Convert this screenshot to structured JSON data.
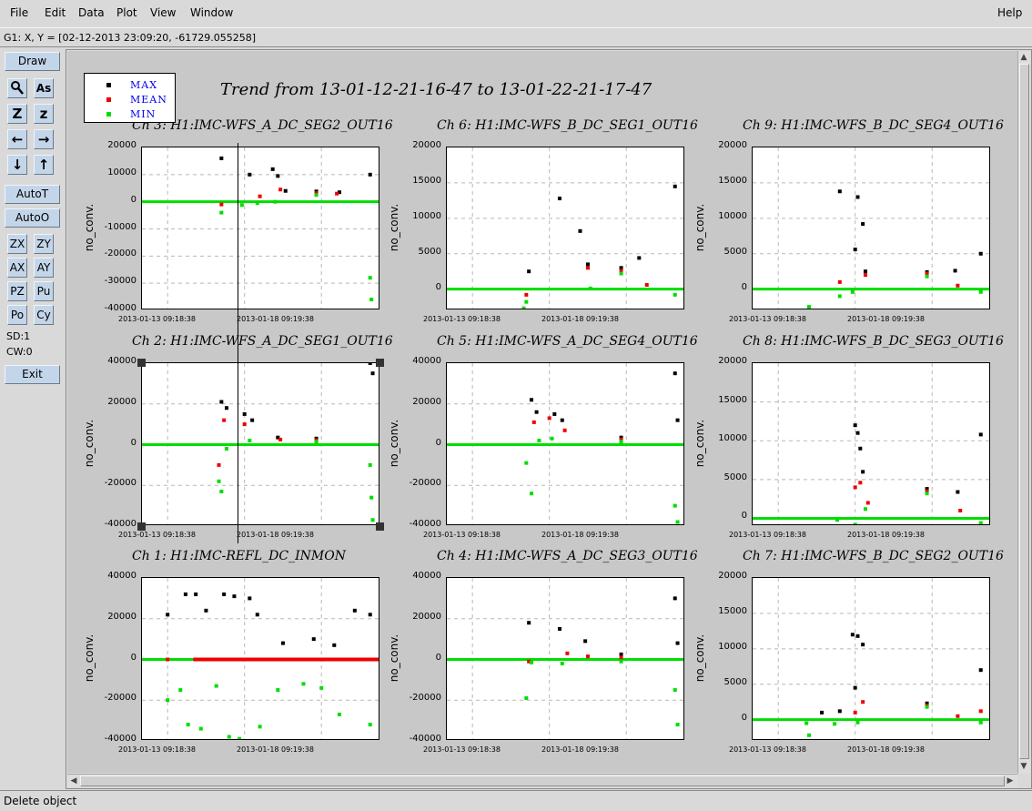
{
  "menu": {
    "file": "File",
    "edit": "Edit",
    "data": "Data",
    "plot": "Plot",
    "view": "View",
    "window": "Window",
    "help": "Help"
  },
  "coord_readout": "G1: X, Y = [02-12-2013 23:09:20, -61729.055258]",
  "toolbar": {
    "draw": "Draw",
    "magnify_icon": "magnify-icon",
    "text_icon_label": "As",
    "zoom_in_label": "Z",
    "zoom_out_label": "z",
    "auto_t": "AutoT",
    "auto_o": "AutoO",
    "zx": "ZX",
    "zy": "ZY",
    "ax": "AX",
    "ay": "AY",
    "pz": "PZ",
    "pu": "Pu",
    "po": "Po",
    "cy": "Cy",
    "sd": "SD:1",
    "cw": "CW:0",
    "exit": "Exit",
    "button_color": "#c3d5e9"
  },
  "status": "Delete object",
  "trend_title": "Trend from 13-01-12-21-16-47 to 13-01-22-21-17-47",
  "legend": [
    {
      "label": "MAX",
      "color": "#000000"
    },
    {
      "label": "MEAN",
      "color": "#ee0000"
    },
    {
      "label": "MIN",
      "color": "#00dd00"
    }
  ],
  "chart_data": [
    {
      "type": "scatter",
      "title": "Ch 3: H1:IMC-WFS_A_DC_SEG2_OUT16",
      "ylabel": "no_conv.",
      "ylim": [
        -40000,
        20000
      ],
      "yticks": [
        "20000",
        "10000",
        "0",
        "-10000",
        "-20000",
        "-30000",
        "-40000"
      ],
      "xticks": [
        "2013-01-13 09:18:38",
        "2013-01-18 09:19:38"
      ],
      "grid": true,
      "series": [
        {
          "name": "MAX",
          "points": [
            [
              3.1,
              16000
            ],
            [
              4.2,
              10000
            ],
            [
              5.1,
              12000
            ],
            [
              5.3,
              9500
            ],
            [
              5.6,
              4000
            ],
            [
              6.8,
              3800
            ],
            [
              7.7,
              3500
            ],
            [
              8.9,
              10000
            ]
          ]
        },
        {
          "name": "MEAN",
          "points": [
            [
              3.1,
              -1000
            ],
            [
              4.6,
              2000
            ],
            [
              5.4,
              4500
            ],
            [
              6.8,
              3200
            ],
            [
              7.6,
              3000
            ]
          ]
        },
        {
          "name": "MIN",
          "points": [
            [
              3.1,
              -4000
            ],
            [
              3.9,
              -1200
            ],
            [
              4.5,
              -500
            ],
            [
              5.2,
              0
            ],
            [
              6.8,
              2500
            ],
            [
              8.9,
              -28000
            ],
            [
              8.95,
              -36000
            ]
          ]
        }
      ]
    },
    {
      "type": "scatter",
      "title": "Ch 6: H1:IMC-WFS_B_DC_SEG1_OUT16",
      "ylabel": "no_conv.",
      "ylim": [
        -3000,
        20000
      ],
      "yticks": [
        "20000",
        "15000",
        "10000",
        "5000",
        "0"
      ],
      "xticks": [
        "2013-01-13 09:18:38",
        "2013-01-18 09:19:38"
      ],
      "grid": true,
      "series": [
        {
          "name": "MAX",
          "points": [
            [
              3.2,
              2500
            ],
            [
              4.4,
              12800
            ],
            [
              5.2,
              8200
            ],
            [
              5.5,
              3500
            ],
            [
              6.8,
              3000
            ],
            [
              7.5,
              4400
            ],
            [
              8.9,
              14500
            ]
          ]
        },
        {
          "name": "MEAN",
          "points": [
            [
              3.1,
              -800
            ],
            [
              5.5,
              3000
            ],
            [
              6.8,
              2600
            ],
            [
              7.8,
              600
            ]
          ]
        },
        {
          "name": "MIN",
          "points": [
            [
              3.0,
              -2700
            ],
            [
              3.1,
              -1800
            ],
            [
              5.6,
              100
            ],
            [
              6.8,
              2200
            ],
            [
              8.9,
              -800
            ]
          ]
        }
      ]
    },
    {
      "type": "scatter",
      "title": "Ch 9: H1:IMC-WFS_B_DC_SEG4_OUT16",
      "ylabel": "no_conv.",
      "ylim": [
        -3000,
        20000
      ],
      "yticks": [
        "20000",
        "15000",
        "10000",
        "5000",
        "0"
      ],
      "xticks": [
        "2013-01-13 09:18:38",
        "2013-01-18 09:19:38"
      ],
      "grid": true,
      "series": [
        {
          "name": "MAX",
          "points": [
            [
              3.4,
              13800
            ],
            [
              4.1,
              13000
            ],
            [
              4.0,
              5600
            ],
            [
              4.3,
              9200
            ],
            [
              4.4,
              2500
            ],
            [
              6.8,
              2400
            ],
            [
              7.9,
              2600
            ],
            [
              8.9,
              5000
            ]
          ]
        },
        {
          "name": "MEAN",
          "points": [
            [
              3.4,
              1000
            ],
            [
              4.4,
              2000
            ],
            [
              6.8,
              2200
            ],
            [
              8.0,
              500
            ]
          ]
        },
        {
          "name": "MIN",
          "points": [
            [
              2.2,
              -2500
            ],
            [
              3.4,
              -1000
            ],
            [
              3.9,
              -400
            ],
            [
              6.8,
              1800
            ],
            [
              8.9,
              -400
            ]
          ]
        }
      ]
    },
    {
      "type": "scatter",
      "title": "Ch 2: H1:IMC-WFS_A_DC_SEG1_OUT16",
      "ylabel": "no_conv.",
      "ylim": [
        -40000,
        40000
      ],
      "yticks": [
        "40000",
        "20000",
        "0",
        "-20000",
        "-40000"
      ],
      "xticks": [
        "2013-01-13 09:18:38",
        "2013-01-18 09:19:38"
      ],
      "grid": true,
      "series": [
        {
          "name": "MAX",
          "points": [
            [
              3.1,
              21000
            ],
            [
              3.3,
              18000
            ],
            [
              4.0,
              15000
            ],
            [
              4.3,
              12000
            ],
            [
              5.3,
              3500
            ],
            [
              6.8,
              3000
            ],
            [
              8.9,
              40000
            ],
            [
              9.0,
              35000
            ]
          ]
        },
        {
          "name": "MEAN",
          "points": [
            [
              3.0,
              -10000
            ],
            [
              3.2,
              12000
            ],
            [
              4.0,
              10000
            ],
            [
              5.4,
              2500
            ],
            [
              6.8,
              2200
            ]
          ]
        },
        {
          "name": "MIN",
          "points": [
            [
              3.0,
              -18000
            ],
            [
              3.1,
              -23000
            ],
            [
              3.3,
              -2000
            ],
            [
              4.2,
              2000
            ],
            [
              6.8,
              1500
            ],
            [
              8.9,
              -10000
            ],
            [
              8.95,
              -26000
            ],
            [
              9.0,
              -37000
            ]
          ]
        }
      ]
    },
    {
      "type": "scatter",
      "title": "Ch 5: H1:IMC-WFS_A_DC_SEG4_OUT16",
      "ylabel": "no_conv.",
      "ylim": [
        -40000,
        40000
      ],
      "yticks": [
        "40000",
        "20000",
        "0",
        "-20000",
        "-40000"
      ],
      "xticks": [
        "2013-01-13 09:18:38",
        "2013-01-18 09:19:38"
      ],
      "grid": true,
      "series": [
        {
          "name": "MAX",
          "points": [
            [
              3.3,
              22000
            ],
            [
              3.5,
              16000
            ],
            [
              4.2,
              15000
            ],
            [
              4.5,
              12000
            ],
            [
              6.8,
              3500
            ],
            [
              8.9,
              35000
            ],
            [
              9.0,
              12000
            ]
          ]
        },
        {
          "name": "MEAN",
          "points": [
            [
              3.4,
              11000
            ],
            [
              4.0,
              13000
            ],
            [
              4.6,
              7000
            ],
            [
              6.8,
              2500
            ]
          ]
        },
        {
          "name": "MIN",
          "points": [
            [
              3.1,
              -9000
            ],
            [
              3.3,
              -24000
            ],
            [
              3.6,
              2000
            ],
            [
              4.1,
              3000
            ],
            [
              6.8,
              1500
            ],
            [
              8.9,
              -30000
            ],
            [
              9.0,
              -38000
            ]
          ]
        }
      ]
    },
    {
      "type": "scatter",
      "title": "Ch 8: H1:IMC-WFS_B_DC_SEG3_OUT16",
      "ylabel": "no_conv.",
      "ylim": [
        -1000,
        20000
      ],
      "yticks": [
        "20000",
        "15000",
        "10000",
        "5000",
        "0"
      ],
      "xticks": [
        "2013-01-13 09:18:38",
        "2013-01-18 09:19:38"
      ],
      "grid": true,
      "series": [
        {
          "name": "MAX",
          "points": [
            [
              4.0,
              12000
            ],
            [
              4.1,
              11000
            ],
            [
              4.2,
              9000
            ],
            [
              4.3,
              6000
            ],
            [
              6.8,
              3800
            ],
            [
              8.0,
              3400
            ],
            [
              8.9,
              10800
            ]
          ]
        },
        {
          "name": "MEAN",
          "points": [
            [
              4.0,
              4000
            ],
            [
              4.2,
              4600
            ],
            [
              4.5,
              2000
            ],
            [
              6.8,
              3500
            ],
            [
              8.1,
              1000
            ]
          ]
        },
        {
          "name": "MIN",
          "points": [
            [
              3.3,
              -200
            ],
            [
              4.0,
              -800
            ],
            [
              4.4,
              1200
            ],
            [
              6.8,
              3200
            ],
            [
              8.9,
              -600
            ]
          ]
        }
      ]
    },
    {
      "type": "scatter",
      "title": "Ch 1: H1:IMC-REFL_DC_INMON",
      "ylabel": "no_conv.",
      "ylim": [
        -40000,
        40000
      ],
      "yticks": [
        "40000",
        "20000",
        "0",
        "-20000",
        "-40000"
      ],
      "xticks": [
        "2013-01-13 09:18:38",
        "2013-01-18 09:19:38"
      ],
      "grid": true,
      "series": [
        {
          "name": "MAX",
          "points": [
            [
              1.0,
              22000
            ],
            [
              1.7,
              32000
            ],
            [
              2.1,
              32000
            ],
            [
              2.5,
              24000
            ],
            [
              3.2,
              32000
            ],
            [
              3.6,
              31000
            ],
            [
              4.2,
              30000
            ],
            [
              4.5,
              22000
            ],
            [
              5.5,
              8000
            ],
            [
              6.7,
              10000
            ],
            [
              7.5,
              7000
            ],
            [
              8.3,
              24000
            ],
            [
              8.9,
              22000
            ]
          ]
        },
        {
          "name": "MEAN",
          "points": [
            [
              1.0,
              0
            ],
            [
              3.0,
              0
            ],
            [
              5.0,
              0
            ],
            [
              7.0,
              0
            ],
            [
              9.0,
              0
            ]
          ]
        },
        {
          "name": "MIN",
          "points": [
            [
              1.0,
              -20000
            ],
            [
              1.5,
              -15000
            ],
            [
              1.8,
              -32000
            ],
            [
              2.3,
              -34000
            ],
            [
              2.9,
              -13000
            ],
            [
              3.4,
              -38000
            ],
            [
              3.8,
              -39000
            ],
            [
              4.6,
              -33000
            ],
            [
              5.3,
              -15000
            ],
            [
              6.3,
              -12000
            ],
            [
              7.0,
              -14000
            ],
            [
              7.7,
              -27000
            ],
            [
              8.9,
              -32000
            ]
          ]
        }
      ]
    },
    {
      "type": "scatter",
      "title": "Ch 4: H1:IMC-WFS_A_DC_SEG3_OUT16",
      "ylabel": "no_conv.",
      "ylim": [
        -40000,
        40000
      ],
      "yticks": [
        "40000",
        "20000",
        "0",
        "-20000",
        "-40000"
      ],
      "xticks": [
        "2013-01-13 09:18:38",
        "2013-01-18 09:19:38"
      ],
      "grid": true,
      "series": [
        {
          "name": "MAX",
          "points": [
            [
              3.2,
              18000
            ],
            [
              4.4,
              15000
            ],
            [
              5.4,
              9000
            ],
            [
              6.8,
              2500
            ],
            [
              8.9,
              30000
            ],
            [
              9.0,
              8000
            ]
          ]
        },
        {
          "name": "MEAN",
          "points": [
            [
              3.2,
              -1000
            ],
            [
              4.7,
              3000
            ],
            [
              5.5,
              1500
            ],
            [
              6.8,
              1000
            ]
          ]
        },
        {
          "name": "MIN",
          "points": [
            [
              3.1,
              -19000
            ],
            [
              3.3,
              -1500
            ],
            [
              4.5,
              -2000
            ],
            [
              6.8,
              -1000
            ],
            [
              8.9,
              -15000
            ],
            [
              9.0,
              -32000
            ]
          ]
        }
      ]
    },
    {
      "type": "scatter",
      "title": "Ch 7: H1:IMC-WFS_B_DC_SEG2_OUT16",
      "ylabel": "no_conv.",
      "ylim": [
        -3000,
        20000
      ],
      "yticks": [
        "20000",
        "15000",
        "10000",
        "5000",
        "0"
      ],
      "xticks": [
        "2013-01-13 09:18:38",
        "2013-01-18 09:19:38"
      ],
      "grid": true,
      "series": [
        {
          "name": "MAX",
          "points": [
            [
              2.7,
              1000
            ],
            [
              3.4,
              1200
            ],
            [
              3.9,
              12000
            ],
            [
              4.1,
              11800
            ],
            [
              4.3,
              10600
            ],
            [
              4.0,
              4500
            ],
            [
              6.8,
              2300
            ],
            [
              8.9,
              7000
            ]
          ]
        },
        {
          "name": "MEAN",
          "points": [
            [
              4.0,
              1000
            ],
            [
              4.3,
              2500
            ],
            [
              6.8,
              2000
            ],
            [
              8.0,
              500
            ],
            [
              8.9,
              1200
            ]
          ]
        },
        {
          "name": "MIN",
          "points": [
            [
              2.1,
              -500
            ],
            [
              2.2,
              -2200
            ],
            [
              3.2,
              -600
            ],
            [
              4.1,
              -400
            ],
            [
              6.8,
              1800
            ],
            [
              8.9,
              -400
            ]
          ]
        }
      ]
    }
  ]
}
